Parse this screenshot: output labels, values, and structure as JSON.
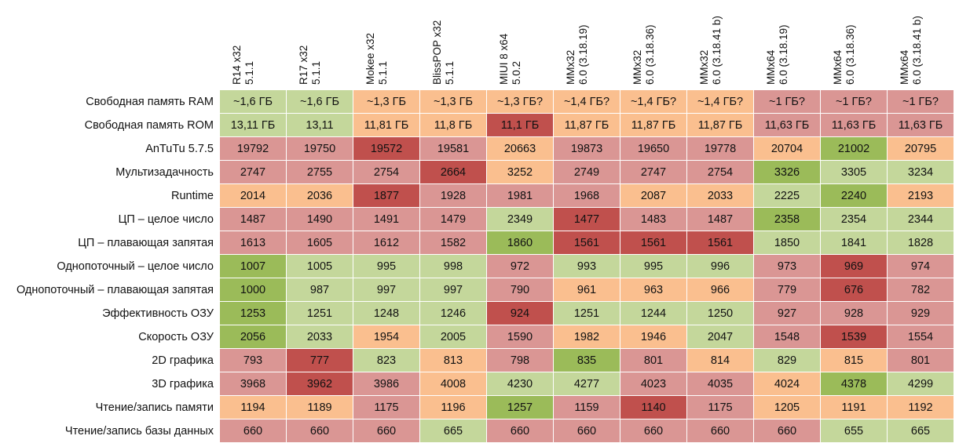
{
  "chart_data": {
    "type": "table",
    "columns": [
      [
        "R14 x32",
        "5.1.1"
      ],
      [
        "R17 x32",
        "5.1.1"
      ],
      [
        "Mokee  x32",
        "5.1.1"
      ],
      [
        "BlissPOP x32",
        "5.1.1"
      ],
      [
        "MIUI 8 x64",
        "5.0.2"
      ],
      [
        "MMx32",
        "6.0 (3.18.19)"
      ],
      [
        "MMx32",
        "6.0 (3.18.36)"
      ],
      [
        "MMx32",
        "6.0 (3.18.41 b)"
      ],
      [
        "MMx64",
        "6.0 (3.18.19)"
      ],
      [
        "MMx64",
        "6.0 (3.18.36)"
      ],
      [
        "MMx64",
        "6.0 (3.18.41 b)"
      ]
    ],
    "rows": [
      "Свободная память RAM",
      "Свободная память ROM",
      "AnTuTu 5.7.5",
      "Мультизадачность",
      "Runtime",
      "ЦП – целое число",
      "ЦП – плавающая запятая",
      "Однопоточный – целое число",
      "Однопоточный – плавающая запятая",
      "Эффективность ОЗУ",
      "Скорость ОЗУ",
      "2D графика",
      "3D графика",
      "Чтение/запись памяти",
      "Чтение/запись базы данных"
    ],
    "values": [
      [
        "~1,6 ГБ",
        "~1,6 ГБ",
        "~1,3 ГБ",
        "~1,3 ГБ",
        "~1,3 ГБ?",
        "~1,4 ГБ?",
        "~1,4 ГБ?",
        "~1,4 ГБ?",
        "~1 ГБ?",
        "~1 ГБ?",
        "~1 ГБ?"
      ],
      [
        "13,11 ГБ",
        "13,11",
        "11,81 ГБ",
        "11,8 ГБ",
        "11,1 ГБ",
        "11,87 ГБ",
        "11,87 ГБ",
        "11,87 ГБ",
        "11,63 ГБ",
        "11,63 ГБ",
        "11,63 ГБ"
      ],
      [
        "19792",
        "19750",
        "19572",
        "19581",
        "20663",
        "19873",
        "19650",
        "19778",
        "20704",
        "21002",
        "20795"
      ],
      [
        "2747",
        "2755",
        "2754",
        "2664",
        "3252",
        "2749",
        "2747",
        "2754",
        "3326",
        "3305",
        "3234"
      ],
      [
        "2014",
        "2036",
        "1877",
        "1928",
        "1981",
        "1968",
        "2087",
        "2033",
        "2225",
        "2240",
        "2193"
      ],
      [
        "1487",
        "1490",
        "1491",
        "1479",
        "2349",
        "1477",
        "1483",
        "1487",
        "2358",
        "2354",
        "2344"
      ],
      [
        "1613",
        "1605",
        "1612",
        "1582",
        "1860",
        "1561",
        "1561",
        "1561",
        "1850",
        "1841",
        "1828"
      ],
      [
        "1007",
        "1005",
        "995",
        "998",
        "972",
        "993",
        "995",
        "996",
        "973",
        "969",
        "974"
      ],
      [
        "1000",
        "987",
        "997",
        "997",
        "790",
        "961",
        "963",
        "966",
        "779",
        "676",
        "782"
      ],
      [
        "1253",
        "1251",
        "1248",
        "1246",
        "924",
        "1251",
        "1244",
        "1250",
        "927",
        "928",
        "929"
      ],
      [
        "2056",
        "2033",
        "1954",
        "2005",
        "1590",
        "1982",
        "1946",
        "2047",
        "1548",
        "1539",
        "1554"
      ],
      [
        "793",
        "777",
        "823",
        "813",
        "798",
        "835",
        "801",
        "814",
        "829",
        "815",
        "801"
      ],
      [
        "3968",
        "3962",
        "3986",
        "4008",
        "4230",
        "4277",
        "4023",
        "4035",
        "4024",
        "4378",
        "4299"
      ],
      [
        "1194",
        "1189",
        "1175",
        "1196",
        "1257",
        "1159",
        "1140",
        "1175",
        "1205",
        "1191",
        "1192"
      ],
      [
        "660",
        "660",
        "660",
        "665",
        "660",
        "660",
        "660",
        "660",
        "660",
        "655",
        "665"
      ]
    ],
    "cell_colors": [
      [
        "g",
        "g",
        "o",
        "o",
        "o",
        "o",
        "o",
        "o",
        "p",
        "p",
        "p"
      ],
      [
        "g",
        "g",
        "o",
        "o",
        "R",
        "o",
        "o",
        "o",
        "p",
        "p",
        "p"
      ],
      [
        "p",
        "p",
        "R",
        "p",
        "o",
        "p",
        "p",
        "p",
        "o",
        "G",
        "o"
      ],
      [
        "p",
        "p",
        "p",
        "R",
        "o",
        "p",
        "p",
        "p",
        "G",
        "g",
        "g"
      ],
      [
        "o",
        "o",
        "R",
        "p",
        "p",
        "p",
        "o",
        "o",
        "g",
        "G",
        "o"
      ],
      [
        "p",
        "p",
        "p",
        "p",
        "g",
        "R",
        "p",
        "p",
        "G",
        "g",
        "g"
      ],
      [
        "p",
        "p",
        "p",
        "p",
        "G",
        "R",
        "R",
        "R",
        "g",
        "g",
        "g"
      ],
      [
        "G",
        "g",
        "g",
        "g",
        "p",
        "g",
        "g",
        "g",
        "p",
        "R",
        "p"
      ],
      [
        "G",
        "g",
        "g",
        "g",
        "p",
        "o",
        "o",
        "o",
        "p",
        "R",
        "p"
      ],
      [
        "G",
        "g",
        "g",
        "g",
        "R",
        "g",
        "g",
        "g",
        "p",
        "p",
        "p"
      ],
      [
        "G",
        "g",
        "o",
        "g",
        "p",
        "o",
        "o",
        "g",
        "p",
        "R",
        "p"
      ],
      [
        "p",
        "R",
        "g",
        "o",
        "p",
        "G",
        "p",
        "o",
        "g",
        "o",
        "p"
      ],
      [
        "p",
        "R",
        "p",
        "o",
        "g",
        "g",
        "p",
        "p",
        "o",
        "G",
        "g"
      ],
      [
        "o",
        "o",
        "p",
        "o",
        "G",
        "p",
        "R",
        "p",
        "o",
        "o",
        "o"
      ],
      [
        "p",
        "p",
        "p",
        "g",
        "p",
        "p",
        "p",
        "p",
        "p",
        "g",
        "g"
      ]
    ],
    "palette": {
      "G": "#9bbb59",
      "g": "#c4d79b",
      "o": "#fabf8f",
      "p": "#da9694",
      "R": "#c0504d"
    }
  }
}
